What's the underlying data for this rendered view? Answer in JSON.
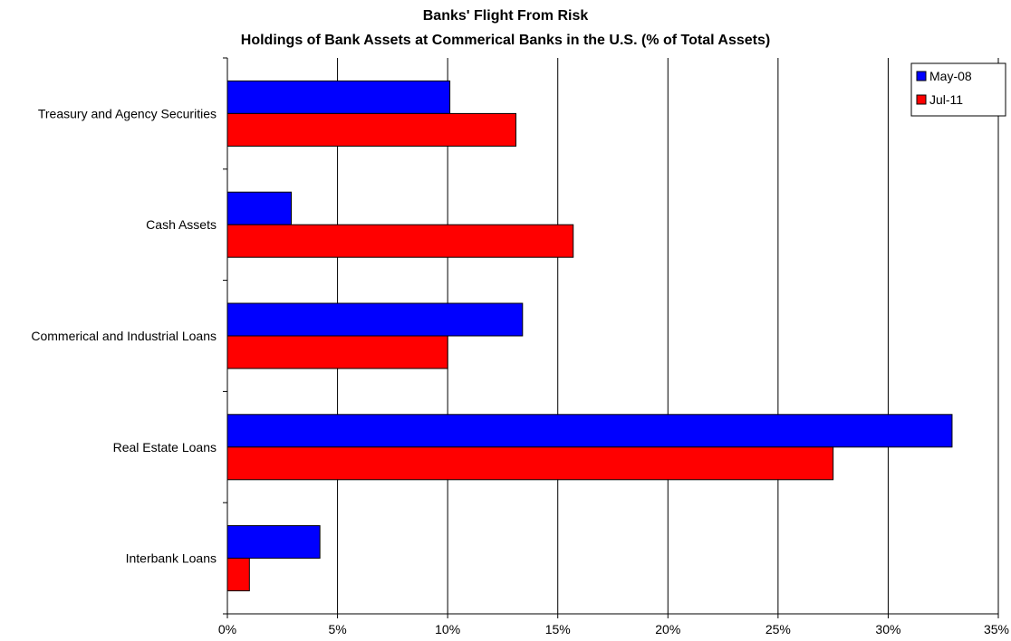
{
  "chart_data": {
    "type": "bar",
    "orientation": "horizontal",
    "title": "Banks' Flight From Risk",
    "subtitle": "Holdings of Bank Assets at Commerical Banks in the U.S. (% of Total Assets)",
    "categories": [
      "Treasury and Agency Securities",
      "Cash Assets",
      "Commerical and Industrial Loans",
      "Real Estate Loans",
      "Interbank Loans"
    ],
    "series": [
      {
        "name": "May-08",
        "color": "#0000ff",
        "values": [
          10.1,
          2.9,
          13.4,
          32.9,
          4.2
        ]
      },
      {
        "name": "Jul-11",
        "color": "#ff0000",
        "values": [
          13.1,
          15.7,
          10.0,
          27.5,
          1.0
        ]
      }
    ],
    "xlim": [
      0,
      35
    ],
    "xticks": [
      0,
      5,
      10,
      15,
      20,
      25,
      30,
      35
    ],
    "xtick_labels": [
      "0%",
      "5%",
      "10%",
      "15%",
      "20%",
      "25%",
      "30%",
      "35%"
    ],
    "grid": "vertical",
    "legend_position": "top-right"
  }
}
